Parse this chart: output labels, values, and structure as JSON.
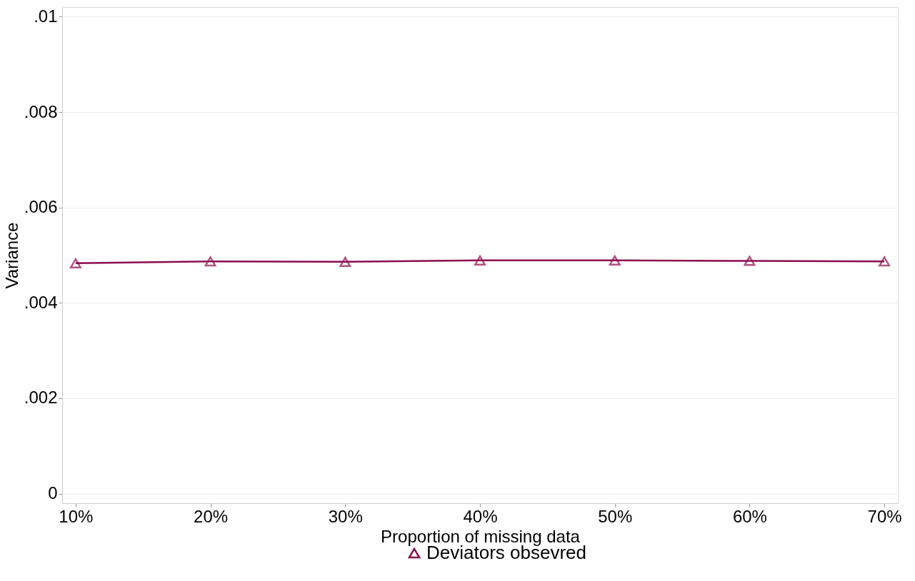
{
  "chart_data": {
    "type": "line",
    "xlabel": "Proportion of missing data",
    "ylabel": "Variance",
    "x": [
      10,
      20,
      30,
      40,
      50,
      60,
      70
    ],
    "series": [
      {
        "name": "Deviators obsevred",
        "color": "#8c0c4f",
        "values": [
          0.00483,
          0.00487,
          0.00486,
          0.00489,
          0.00489,
          0.00488,
          0.00487
        ]
      }
    ],
    "xlim": [
      9,
      71
    ],
    "xticks": [
      {
        "value": 10,
        "label": "10%"
      },
      {
        "value": 20,
        "label": "20%"
      },
      {
        "value": 30,
        "label": "30%"
      },
      {
        "value": 40,
        "label": "40%"
      },
      {
        "value": 50,
        "label": "50%"
      },
      {
        "value": 60,
        "label": "60%"
      },
      {
        "value": 70,
        "label": "70%"
      }
    ],
    "ylim": [
      -0.0002,
      0.0102
    ],
    "yticks": [
      0,
      {
        "value": 0.002,
        "label": ".002"
      },
      {
        "value": 0.004,
        "label": ".004"
      },
      {
        "value": 0.006,
        "label": ".006"
      },
      {
        "value": 0.008,
        "label": ".008"
      },
      {
        "value": 0.01,
        "label": ".01"
      }
    ],
    "grid": "y",
    "legend": "bottom",
    "marker": "triangle",
    "line_style": "solid"
  }
}
